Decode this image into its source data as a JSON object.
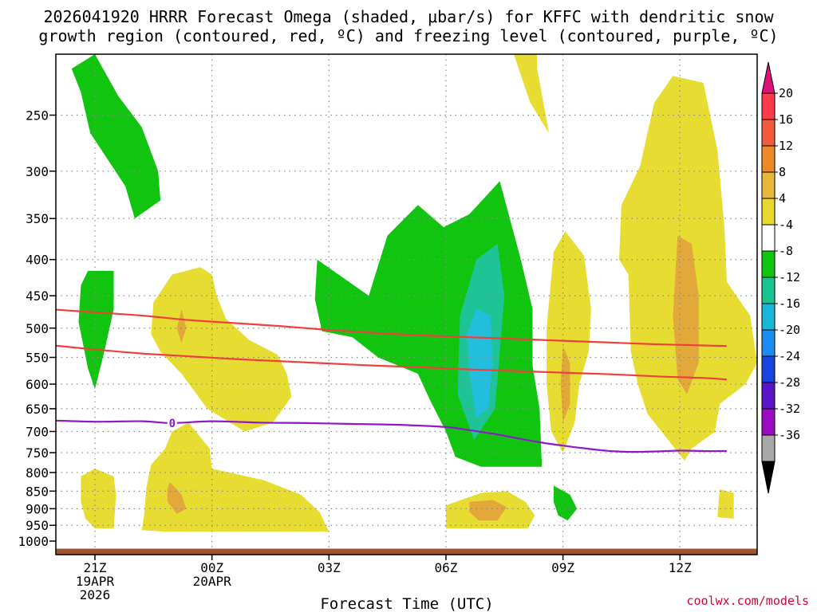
{
  "chart_data": {
    "type": "contour",
    "title_line1": "2026041920 HRRR Forecast Omega (shaded, μbar/s) for KFFC with dendritic snow",
    "title_line2": "growth region (contoured, red, ºC) and freezing level (contoured, purple, ºC)",
    "xlabel": "Forecast Time (UTC)",
    "credit": "coolwx.com/models",
    "x_range_hours": [
      -2,
      27
    ],
    "y_range_mb": [
      1050,
      190
    ],
    "y_ticks": [
      250,
      300,
      350,
      400,
      450,
      500,
      550,
      600,
      650,
      700,
      750,
      800,
      850,
      900,
      950,
      1000
    ],
    "y_tick_labels": [
      "250",
      "300",
      "350",
      "400",
      "450",
      "500",
      "550",
      "600",
      "650",
      "700",
      "750",
      "800",
      "850",
      "900",
      "950",
      "1000"
    ],
    "x_ticks": [
      {
        "hour": 0,
        "lines": [
          "21Z",
          "19APR",
          "2026"
        ]
      },
      {
        "hour": 5,
        "lines": [
          "00Z",
          "20APR"
        ]
      },
      {
        "hour": 10,
        "lines": [
          "03Z"
        ]
      },
      {
        "hour": 15,
        "lines": [
          "06Z"
        ]
      },
      {
        "hour": 20,
        "lines": [
          "09Z"
        ]
      },
      {
        "hour": 25,
        "lines": [
          "12Z"
        ]
      }
    ],
    "colorbar": {
      "labels": [
        "20",
        "16",
        "12",
        "8",
        "4",
        "-4",
        "-8",
        "-12",
        "-16",
        "-20",
        "-24",
        "-28",
        "-32",
        "-36"
      ],
      "colors": [
        "#ff3a4a",
        "#f25a3c",
        "#ec8a2a",
        "#e8b838",
        "#e8d830",
        "#ffffff",
        "#10c410",
        "#18c490",
        "#18b8d8",
        "#1a8cf0",
        "#1a44e0",
        "#5a14c8",
        "#9a0cc0",
        "#a8a8a8"
      ],
      "top_color": "#e0107a",
      "bottom_color": "#000000"
    },
    "ground_pressure_mb": 1025,
    "ground_color": "#a0522d",
    "fill_colors": {
      "yellow": "#e6dc32",
      "orange": "#e2a83a",
      "green": "#10c410",
      "teal": "#1ec496",
      "cyan": "#22bede"
    },
    "omega_regions": [
      {
        "level": "green",
        "pts": [
          [
            -1.0,
            215
          ],
          [
            0.0,
            205
          ],
          [
            1.0,
            235
          ],
          [
            2.0,
            260
          ],
          [
            2.7,
            300
          ],
          [
            2.8,
            330
          ],
          [
            1.7,
            350
          ],
          [
            1.3,
            315
          ],
          [
            -0.2,
            265
          ],
          [
            -0.6,
            232
          ]
        ]
      },
      {
        "level": "green",
        "pts": [
          [
            -0.3,
            415
          ],
          [
            0.8,
            415
          ],
          [
            0.8,
            470
          ],
          [
            0.4,
            540
          ],
          [
            0.0,
            610
          ],
          [
            -0.3,
            570
          ],
          [
            -0.7,
            490
          ],
          [
            -0.6,
            435
          ]
        ]
      },
      {
        "level": "green",
        "pts": [
          [
            9.5,
            400
          ],
          [
            11.7,
            450
          ],
          [
            12.5,
            370
          ],
          [
            13.8,
            335
          ],
          [
            14.9,
            360
          ],
          [
            16.0,
            345
          ],
          [
            17.3,
            310
          ],
          [
            18.2,
            400
          ],
          [
            18.7,
            470
          ],
          [
            18.7,
            565
          ],
          [
            19.0,
            650
          ],
          [
            19.1,
            785
          ],
          [
            16.5,
            785
          ],
          [
            15.4,
            760
          ],
          [
            15.0,
            700
          ],
          [
            14.3,
            630
          ],
          [
            13.8,
            580
          ],
          [
            12.1,
            550
          ],
          [
            11.0,
            515
          ],
          [
            9.7,
            505
          ],
          [
            9.4,
            455
          ]
        ]
      },
      {
        "level": "teal",
        "pts": [
          [
            16.3,
            400
          ],
          [
            17.2,
            380
          ],
          [
            17.5,
            450
          ],
          [
            17.3,
            540
          ],
          [
            17.1,
            650
          ],
          [
            16.2,
            720
          ],
          [
            15.5,
            620
          ],
          [
            15.6,
            480
          ]
        ]
      },
      {
        "level": "cyan",
        "pts": [
          [
            16.3,
            470
          ],
          [
            16.9,
            480
          ],
          [
            17.0,
            560
          ],
          [
            16.8,
            650
          ],
          [
            16.3,
            670
          ],
          [
            16.0,
            580
          ],
          [
            15.9,
            510
          ]
        ]
      },
      {
        "level": "green",
        "pts": [
          [
            19.6,
            835
          ],
          [
            20.3,
            860
          ],
          [
            20.6,
            900
          ],
          [
            20.2,
            935
          ],
          [
            19.8,
            920
          ],
          [
            19.6,
            880
          ]
        ]
      },
      {
        "level": "yellow",
        "pts": [
          [
            17.7,
            140
          ],
          [
            18.8,
            140
          ],
          [
            18.9,
            215
          ],
          [
            19.4,
            265
          ],
          [
            18.6,
            240
          ],
          [
            17.9,
            205
          ]
        ]
      },
      {
        "level": "yellow",
        "pts": [
          [
            2.5,
            460
          ],
          [
            3.3,
            420
          ],
          [
            4.5,
            410
          ],
          [
            5.0,
            420
          ],
          [
            5.2,
            450
          ],
          [
            5.6,
            485
          ],
          [
            6.6,
            520
          ],
          [
            7.8,
            545
          ],
          [
            8.2,
            580
          ],
          [
            8.4,
            625
          ],
          [
            7.6,
            680
          ],
          [
            6.4,
            700
          ],
          [
            4.8,
            650
          ],
          [
            3.7,
            580
          ],
          [
            2.8,
            540
          ],
          [
            2.4,
            510
          ]
        ]
      },
      {
        "level": "orange",
        "pts": [
          [
            3.7,
            470
          ],
          [
            3.9,
            500
          ],
          [
            3.7,
            525
          ],
          [
            3.5,
            500
          ]
        ]
      },
      {
        "level": "yellow",
        "pts": [
          [
            3.3,
            700
          ],
          [
            4.0,
            680
          ],
          [
            4.9,
            740
          ],
          [
            5.0,
            790
          ],
          [
            7.2,
            820
          ],
          [
            8.8,
            860
          ],
          [
            9.6,
            910
          ],
          [
            10.0,
            970
          ],
          [
            3.0,
            970
          ],
          [
            2.0,
            965
          ],
          [
            2.1,
            920
          ],
          [
            2.2,
            840
          ],
          [
            2.4,
            780
          ],
          [
            3.0,
            740
          ]
        ]
      },
      {
        "level": "orange",
        "pts": [
          [
            3.2,
            825
          ],
          [
            3.7,
            860
          ],
          [
            3.9,
            900
          ],
          [
            3.5,
            915
          ],
          [
            3.1,
            880
          ],
          [
            3.1,
            845
          ]
        ]
      },
      {
        "level": "yellow",
        "pts": [
          [
            -0.6,
            810
          ],
          [
            0.0,
            790
          ],
          [
            0.8,
            810
          ],
          [
            0.9,
            860
          ],
          [
            0.8,
            960
          ],
          [
            0.0,
            960
          ],
          [
            -0.4,
            930
          ],
          [
            -0.6,
            880
          ]
        ]
      },
      {
        "level": "yellow",
        "pts": [
          [
            20.1,
            365
          ],
          [
            20.9,
            395
          ],
          [
            21.2,
            470
          ],
          [
            21.1,
            540
          ],
          [
            20.7,
            600
          ],
          [
            20.5,
            680
          ],
          [
            20.0,
            750
          ],
          [
            19.5,
            700
          ],
          [
            19.3,
            600
          ],
          [
            19.3,
            500
          ],
          [
            19.6,
            390
          ]
        ]
      },
      {
        "level": "orange",
        "pts": [
          [
            20.0,
            530
          ],
          [
            20.3,
            560
          ],
          [
            20.3,
            640
          ],
          [
            20.0,
            680
          ],
          [
            19.9,
            600
          ]
        ]
      },
      {
        "level": "yellow",
        "pts": [
          [
            23.3,
            295
          ],
          [
            23.9,
            240
          ],
          [
            24.7,
            220
          ],
          [
            26.0,
            225
          ],
          [
            26.6,
            280
          ],
          [
            26.9,
            360
          ],
          [
            27.0,
            430
          ],
          [
            28.0,
            480
          ],
          [
            28.3,
            560
          ],
          [
            27.8,
            600
          ],
          [
            26.7,
            640
          ],
          [
            26.5,
            700
          ],
          [
            25.5,
            740
          ],
          [
            25.2,
            770
          ],
          [
            24.5,
            720
          ],
          [
            23.6,
            660
          ],
          [
            23.2,
            600
          ],
          [
            22.9,
            540
          ],
          [
            22.8,
            420
          ],
          [
            22.4,
            400
          ],
          [
            22.5,
            335
          ]
        ]
      },
      {
        "level": "orange",
        "pts": [
          [
            24.9,
            370
          ],
          [
            25.5,
            380
          ],
          [
            25.8,
            450
          ],
          [
            25.8,
            560
          ],
          [
            25.3,
            620
          ],
          [
            24.9,
            590
          ],
          [
            24.7,
            480
          ]
        ]
      },
      {
        "level": "yellow",
        "pts": [
          [
            15.0,
            890
          ],
          [
            16.5,
            855
          ],
          [
            17.6,
            850
          ],
          [
            18.4,
            880
          ],
          [
            18.8,
            920
          ],
          [
            18.5,
            960
          ],
          [
            15.0,
            960
          ]
        ]
      },
      {
        "level": "orange",
        "pts": [
          [
            16.0,
            880
          ],
          [
            17.0,
            875
          ],
          [
            17.6,
            895
          ],
          [
            17.2,
            935
          ],
          [
            16.4,
            935
          ],
          [
            16.0,
            910
          ]
        ]
      },
      {
        "level": "yellow",
        "pts": [
          [
            26.7,
            845
          ],
          [
            27.3,
            855
          ],
          [
            27.3,
            930
          ],
          [
            26.6,
            925
          ]
        ]
      }
    ],
    "dgz_lines": [
      {
        "color": "#f0403c",
        "pts": [
          [
            -2,
            470
          ],
          [
            0,
            475
          ],
          [
            2,
            480
          ],
          [
            4,
            487
          ],
          [
            6,
            492
          ],
          [
            8,
            497
          ],
          [
            10,
            503
          ],
          [
            12,
            508
          ],
          [
            14,
            512
          ],
          [
            16,
            515
          ],
          [
            18,
            518
          ],
          [
            20,
            521
          ],
          [
            22,
            524
          ],
          [
            24,
            527
          ],
          [
            26,
            529
          ],
          [
            27,
            530
          ]
        ]
      },
      {
        "color": "#f0403c",
        "pts": [
          [
            -2,
            528
          ],
          [
            0,
            536
          ],
          [
            2,
            543
          ],
          [
            4,
            548
          ],
          [
            6,
            553
          ],
          [
            8,
            557
          ],
          [
            10,
            561
          ],
          [
            12,
            565
          ],
          [
            14,
            568
          ],
          [
            16,
            572
          ],
          [
            18,
            575
          ],
          [
            20,
            578
          ],
          [
            22,
            581
          ],
          [
            24,
            585
          ],
          [
            26,
            588
          ],
          [
            27,
            591
          ]
        ]
      }
    ],
    "freezing_line": {
      "color": "#9018c8",
      "label": "0",
      "label_hour": 3.3,
      "pts": [
        [
          -2,
          675
        ],
        [
          0,
          678
        ],
        [
          2,
          677
        ],
        [
          3.3,
          681
        ],
        [
          5,
          677
        ],
        [
          7,
          680
        ],
        [
          9,
          681
        ],
        [
          11,
          683
        ],
        [
          13,
          685
        ],
        [
          15,
          690
        ],
        [
          16,
          697
        ],
        [
          17,
          705
        ],
        [
          18,
          715
        ],
        [
          19,
          725
        ],
        [
          20,
          733
        ],
        [
          21,
          740
        ],
        [
          22,
          746
        ],
        [
          23,
          748
        ],
        [
          24,
          747
        ],
        [
          25,
          745
        ],
        [
          26,
          746
        ],
        [
          27,
          746
        ]
      ]
    }
  }
}
